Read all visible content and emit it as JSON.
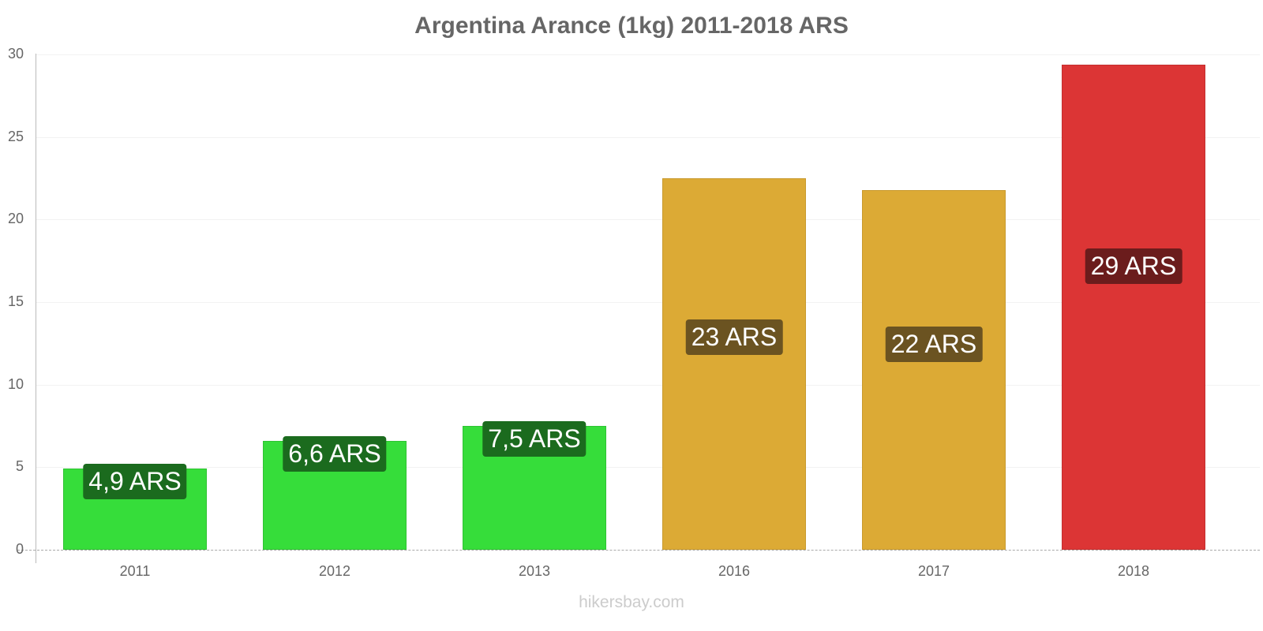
{
  "title": "Argentina Arance (1kg) 2011-2018 ARS",
  "watermark": "hikersbay.com",
  "y_ticks": [
    "0",
    "5",
    "10",
    "15",
    "20",
    "25",
    "30"
  ],
  "bars": [
    {
      "year": "2011",
      "value": 4.9,
      "label": "4,9 ARS",
      "color": "#36dd3a",
      "border": "#2fc333",
      "label_bg": "#1b6b1e"
    },
    {
      "year": "2012",
      "value": 6.6,
      "label": "6,6 ARS",
      "color": "#36dd3a",
      "border": "#2fc333",
      "label_bg": "#1b6b1e"
    },
    {
      "year": "2013",
      "value": 7.5,
      "label": "7,5 ARS",
      "color": "#36dd3a",
      "border": "#2fc333",
      "label_bg": "#1b6b1e"
    },
    {
      "year": "2016",
      "value": 22.5,
      "label": "23 ARS",
      "color": "#dcaa35",
      "border": "#c99a2e",
      "label_bg": "#6b5321"
    },
    {
      "year": "2017",
      "value": 21.8,
      "label": "22 ARS",
      "color": "#dcaa35",
      "border": "#c99a2e",
      "label_bg": "#6b5321"
    },
    {
      "year": "2018",
      "value": 29.4,
      "label": "29 ARS",
      "color": "#dc3535",
      "border": "#c42f2f",
      "label_bg": "#6b1c1c"
    }
  ],
  "chart_data": {
    "type": "bar",
    "title": "Argentina Arance (1kg) 2011-2018 ARS",
    "categories": [
      "2011",
      "2012",
      "2013",
      "2016",
      "2017",
      "2018"
    ],
    "values": [
      4.9,
      6.6,
      7.5,
      22.5,
      21.8,
      29.4
    ],
    "data_labels": [
      "4,9 ARS",
      "6,6 ARS",
      "7,5 ARS",
      "23 ARS",
      "22 ARS",
      "29 ARS"
    ],
    "xlabel": "",
    "ylabel": "",
    "ylim": [
      0,
      30
    ],
    "yticks": [
      0,
      5,
      10,
      15,
      20,
      25,
      30
    ],
    "grid": true,
    "legend": "none",
    "colors": [
      "#36dd3a",
      "#36dd3a",
      "#36dd3a",
      "#dcaa35",
      "#dcaa35",
      "#dc3535"
    ]
  }
}
